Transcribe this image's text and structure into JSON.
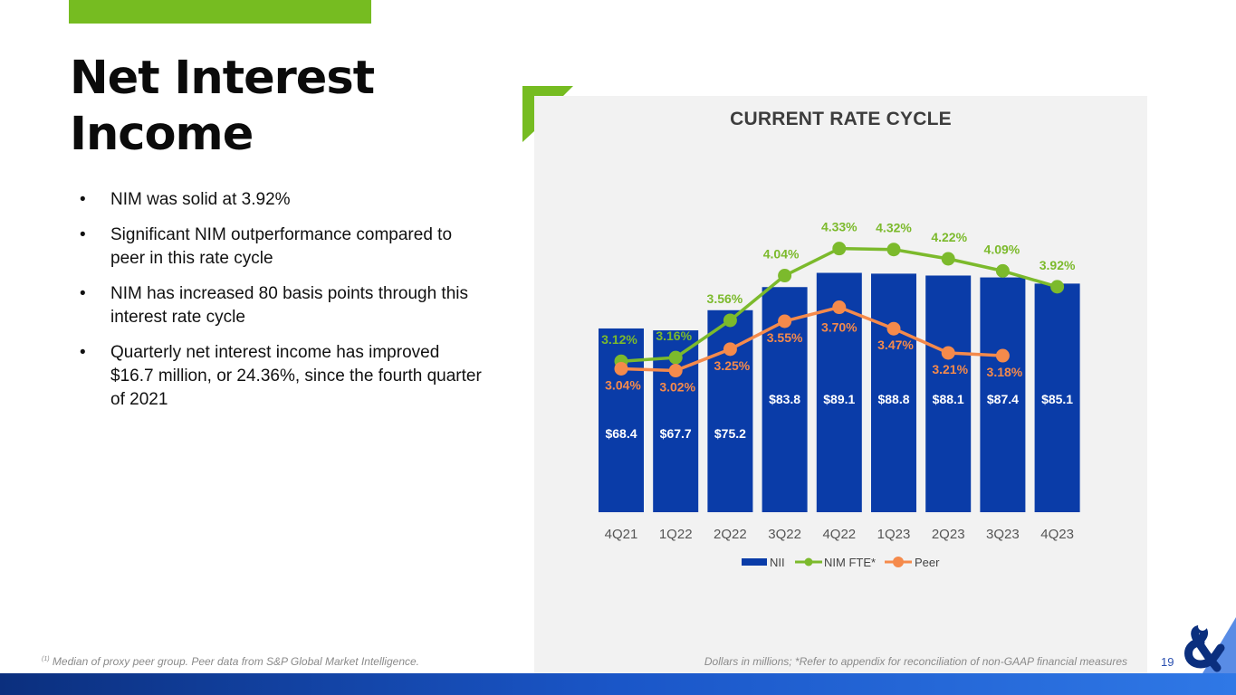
{
  "title": "Net Interest Income",
  "title_lines": [
    "Net Interest",
    "Income"
  ],
  "bullets": [
    "NIM was solid at 3.92%",
    "Significant NIM outperformance compared to peer in this rate cycle",
    "NIM has increased 80 basis points through this interest rate cycle",
    "Quarterly net interest income has improved $16.7 million, or 24.36%, since the fourth quarter of 2021"
  ],
  "bullet_symbol": "•",
  "footnote_marker": "(1)",
  "footnote_left": "Median of proxy peer group. Peer data from S&P Global Market Intelligence.",
  "footnote_right": "Dollars in millions; *Refer to appendix for reconciliation of non-GAAP financial measures",
  "page_number": "19",
  "colors": {
    "accent_green": "#76bc21",
    "bar_blue": "#0a3ca8",
    "nim_green": "#7cba2c",
    "peer_orange": "#f58a4b",
    "panel_bg": "#f2f2f2"
  },
  "chart_data": {
    "type": "bar+line",
    "title": "CURRENT RATE CYCLE",
    "categories": [
      "4Q21",
      "1Q22",
      "2Q22",
      "3Q22",
      "4Q22",
      "1Q23",
      "2Q23",
      "3Q23",
      "4Q23"
    ],
    "series": [
      {
        "name": "NII",
        "type": "bar",
        "values": [
          68.4,
          67.7,
          75.2,
          83.8,
          89.1,
          88.8,
          88.1,
          87.4,
          85.1
        ],
        "labels": [
          "$68.4",
          "$67.7",
          "$75.2",
          "$83.8",
          "$89.1",
          "$88.8",
          "$88.1",
          "$87.4",
          "$85.1"
        ]
      },
      {
        "name": "NIM FTE*",
        "type": "line",
        "values": [
          3.12,
          3.16,
          3.56,
          4.04,
          4.33,
          4.32,
          4.22,
          4.09,
          3.92
        ],
        "labels": [
          "3.12%",
          "3.16%",
          "3.56%",
          "4.04%",
          "4.33%",
          "4.32%",
          "4.22%",
          "4.09%",
          "3.92%"
        ]
      },
      {
        "name": "Peer",
        "type": "line",
        "values": [
          3.04,
          3.02,
          3.25,
          3.55,
          3.7,
          3.47,
          3.21,
          3.18,
          null
        ],
        "labels": [
          "3.04%",
          "3.02%",
          "3.25%",
          "3.55%",
          "3.70%",
          "3.47%",
          "3.21%",
          "3.18%",
          ""
        ]
      }
    ],
    "bar_axis_range": [
      0,
      95
    ],
    "line_axis_range": [
      1.5,
      4.9
    ],
    "legend": [
      "NII",
      "NIM FTE*",
      "Peer"
    ],
    "legend_position": "bottom",
    "grid": false
  }
}
